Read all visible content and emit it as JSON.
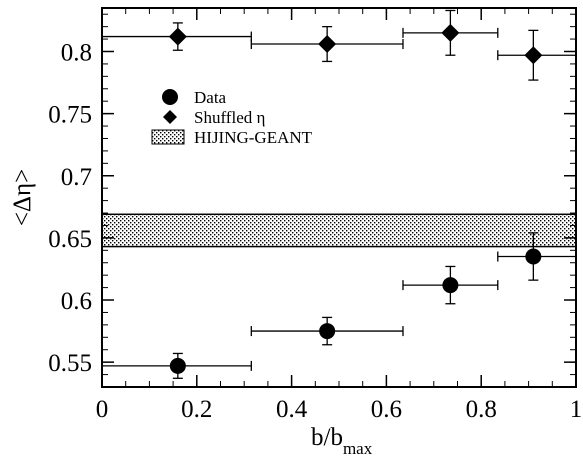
{
  "chart_data": {
    "type": "scatter",
    "xlabel": "b/b",
    "xlabel_sub": "max",
    "ylabel": "<Δη>",
    "xlim": [
      0,
      1
    ],
    "ylim": [
      0.53,
      0.835
    ],
    "x_ticks": [
      0,
      0.2,
      0.4,
      0.6,
      0.8,
      1
    ],
    "x_tick_labels": [
      "0",
      "0.2",
      "0.4",
      "0.6",
      "0.8",
      "1"
    ],
    "y_ticks": [
      0.55,
      0.6,
      0.65,
      0.7,
      0.75,
      0.8
    ],
    "y_tick_labels": [
      "0.55",
      "0.6",
      "0.65",
      "0.7",
      "0.75",
      "0.8"
    ],
    "legend_placement": "upper-left",
    "series": [
      {
        "name": "Data",
        "marker": "circle",
        "points": [
          {
            "x": 0.16,
            "y": 0.547,
            "xerr": [
              0.0,
              0.315
            ],
            "yerr": 0.01
          },
          {
            "x": 0.475,
            "y": 0.575,
            "xerr": [
              0.315,
              0.635
            ],
            "yerr": 0.011
          },
          {
            "x": 0.735,
            "y": 0.612,
            "xerr": [
              0.635,
              0.835
            ],
            "yerr": 0.015
          },
          {
            "x": 0.91,
            "y": 0.635,
            "xerr": [
              0.835,
              1.0
            ],
            "yerr": 0.019
          }
        ]
      },
      {
        "name": "Shuffled η",
        "marker": "diamond",
        "points": [
          {
            "x": 0.16,
            "y": 0.812,
            "xerr": [
              0.0,
              0.315
            ],
            "yerr": 0.011
          },
          {
            "x": 0.475,
            "y": 0.806,
            "xerr": [
              0.315,
              0.635
            ],
            "yerr": 0.014
          },
          {
            "x": 0.735,
            "y": 0.815,
            "xerr": [
              0.635,
              0.835
            ],
            "yerr": 0.018
          },
          {
            "x": 0.91,
            "y": 0.797,
            "xerr": [
              0.835,
              1.0
            ],
            "yerr": 0.02
          }
        ]
      }
    ],
    "band": {
      "name": "HIJING-GEANT",
      "y_low": 0.643,
      "y_high": 0.669,
      "x_range": [
        0,
        1
      ]
    }
  }
}
